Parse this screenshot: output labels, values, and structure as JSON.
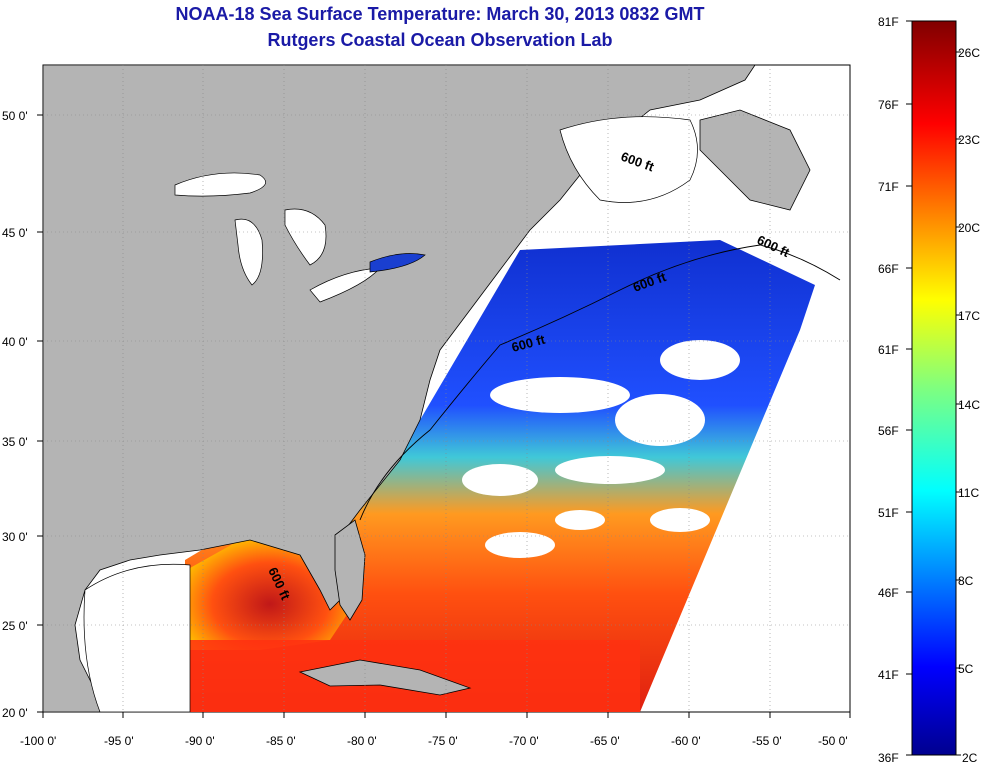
{
  "title": {
    "line1": "NOAA-18 Sea Surface Temperature:  March 30, 2013 0832 GMT",
    "line2": "Rutgers Coastal Ocean Observation Lab"
  },
  "map": {
    "lon_range": [
      -100,
      -50
    ],
    "lat_range": [
      20,
      52.5
    ],
    "x_ticks": [
      "-100 0'",
      "-95 0'",
      "-90 0'",
      "-85 0'",
      "-80 0'",
      "-75 0'",
      "-70 0'",
      "-65 0'",
      "-60 0'",
      "-55 0'",
      "-50 0'"
    ],
    "y_ticks": [
      "50 0'",
      "45 0'",
      "40 0'",
      "35 0'",
      "30 0'",
      "25 0'",
      "20 0'"
    ],
    "contour_label": "600 ft",
    "colors": {
      "land": "#b4b4b4",
      "cloud_or_nodata": "#ffffff",
      "grid": "#888888"
    }
  },
  "colorbar": {
    "fahrenheit_labels": [
      "81F",
      "76F",
      "71F",
      "66F",
      "61F",
      "56F",
      "51F",
      "46F",
      "41F",
      "36F"
    ],
    "celsius_labels": [
      "26C",
      "23C",
      "20C",
      "17C",
      "14C",
      "11C",
      "8C",
      "5C",
      "2C"
    ],
    "colormap": "jet"
  }
}
